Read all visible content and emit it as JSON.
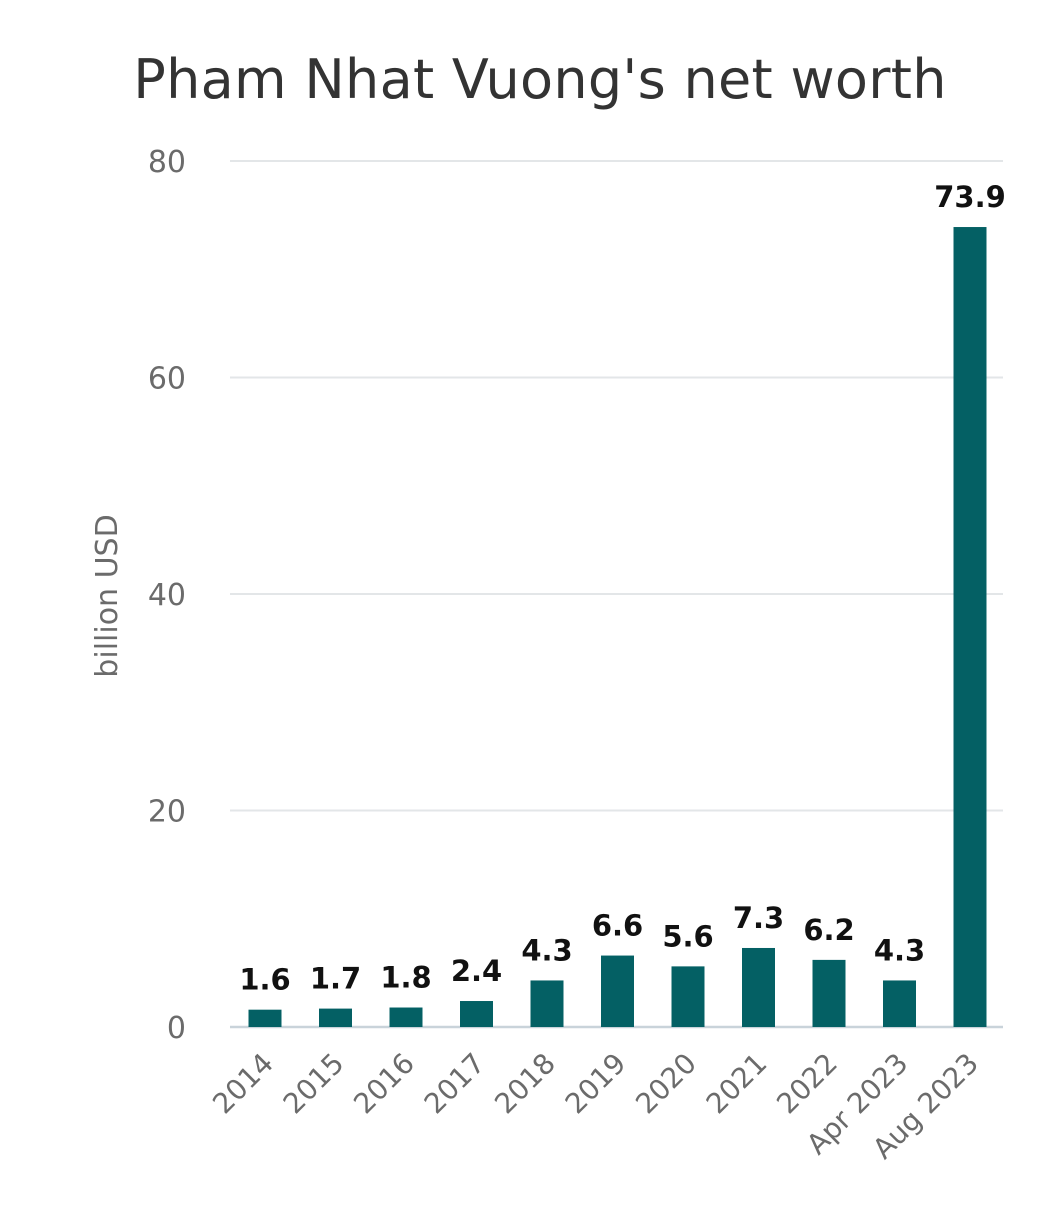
{
  "chart_data": {
    "type": "bar",
    "title": "Pham Nhat Vuong's net worth",
    "xlabel": "",
    "ylabel": "billion USD",
    "categories": [
      "2014",
      "2015",
      "2016",
      "2017",
      "2018",
      "2019",
      "2020",
      "2021",
      "2022",
      "Apr 2023",
      "Aug 2023"
    ],
    "values": [
      1.6,
      1.7,
      1.8,
      2.4,
      4.3,
      6.6,
      5.6,
      7.3,
      6.2,
      4.3,
      73.9
    ],
    "data_labels": [
      "1.6",
      "1.7",
      "1.8",
      "2.4",
      "4.3",
      "6.6",
      "5.6",
      "7.3",
      "6.2",
      "4.3",
      "73.9"
    ],
    "ylim": [
      0,
      80
    ],
    "yticks": [
      0,
      20,
      40,
      60,
      80
    ],
    "grid": true,
    "legend": "none",
    "bar_color": "#046064",
    "grid_color": "#e3e6e8",
    "baseline_color": "#c9d3da"
  }
}
